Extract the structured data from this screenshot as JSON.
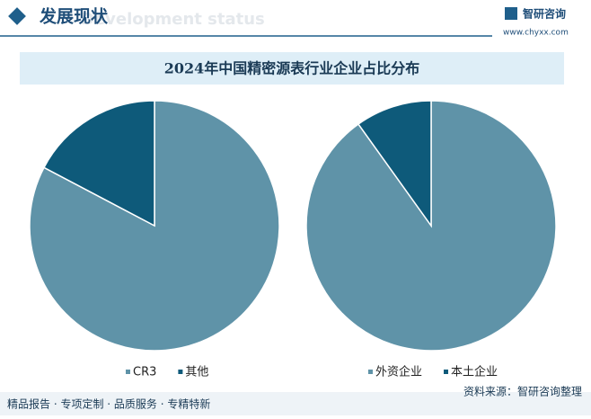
{
  "header": {
    "title": "发展现状",
    "watermark": "Development status",
    "logo": "智研咨询",
    "url": "www.chyxx.com"
  },
  "title": "2024年中国精密源表行业企业占比分布",
  "chart_data": [
    {
      "type": "pie",
      "categories": [
        "CR3",
        "其他"
      ],
      "values": [
        82.7,
        17.3
      ],
      "colors": [
        "#5f93a8",
        "#0e5a7a"
      ]
    },
    {
      "type": "pie",
      "categories": [
        "外资企业",
        "本土企业"
      ],
      "values": [
        90.1,
        9.9
      ],
      "colors": [
        "#5f93a8",
        "#0e5a7a"
      ]
    }
  ],
  "footer": {
    "left": "精品报告 · 专项定制 · 品质服务 · 专精特新",
    "source": "资料来源：智研咨询整理"
  }
}
